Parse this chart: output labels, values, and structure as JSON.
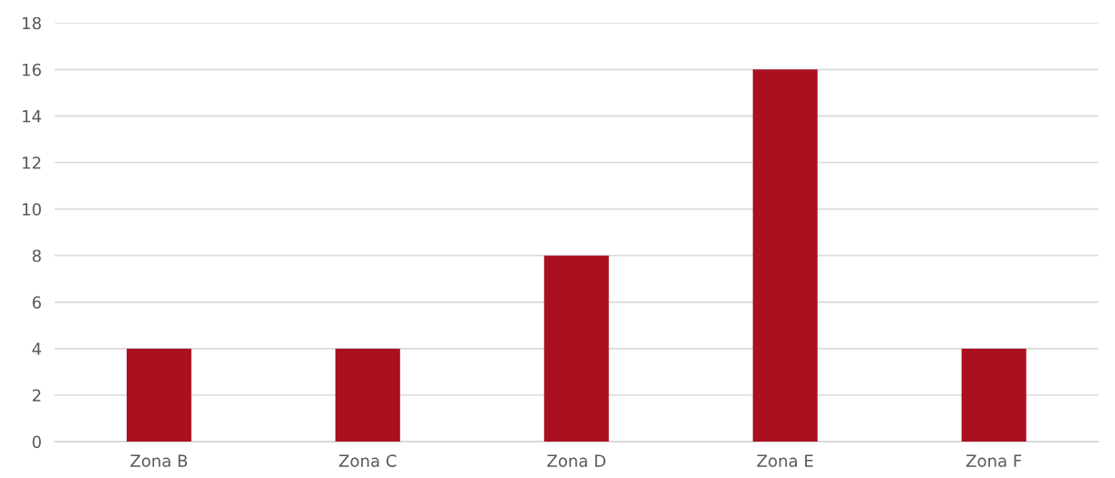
{
  "chart_data": {
    "type": "bar",
    "categories": [
      "Zona B",
      "Zona C",
      "Zona D",
      "Zona E",
      "Zona F"
    ],
    "values": [
      4,
      4,
      8,
      16,
      4
    ],
    "color": "#ab1020",
    "ylim": [
      0,
      18
    ],
    "yticks": [
      0,
      2,
      4,
      6,
      8,
      10,
      12,
      14,
      16,
      18
    ],
    "grid": "y",
    "legend": false
  }
}
